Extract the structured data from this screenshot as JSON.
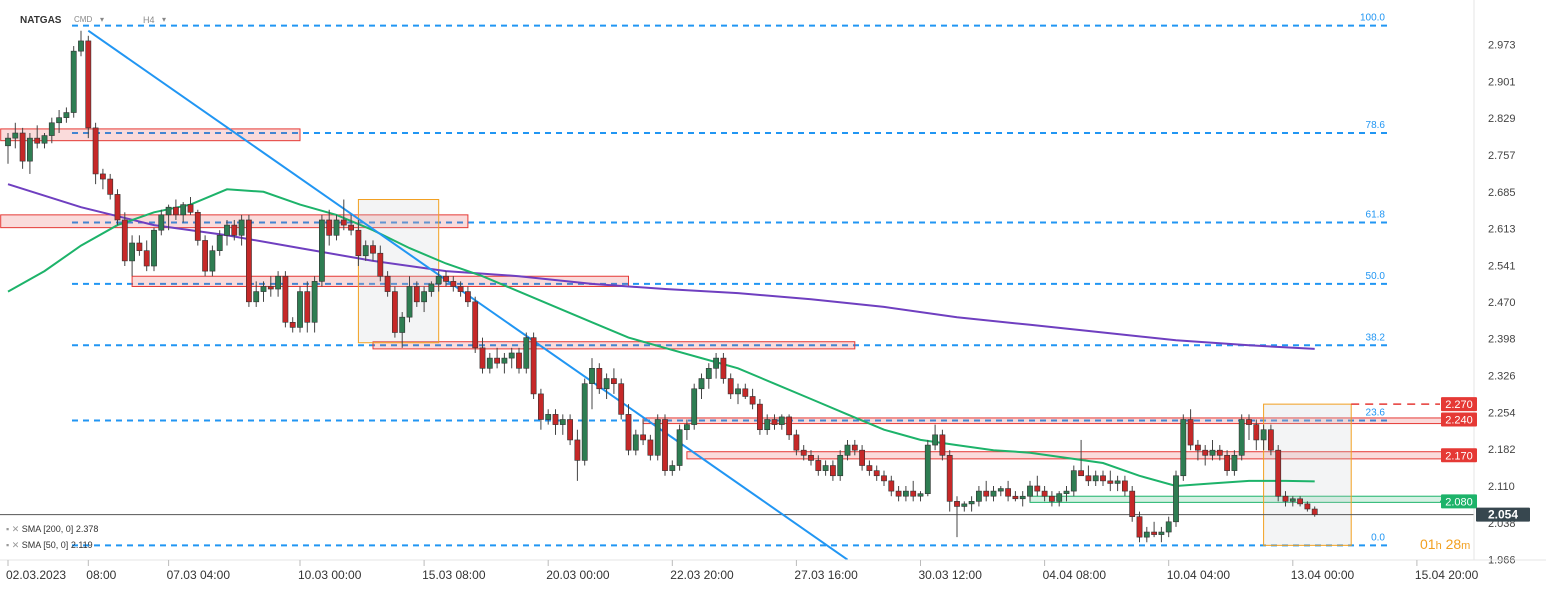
{
  "header": {
    "symbol": "NATGAS",
    "source": "CMD",
    "timeframe": "H4"
  },
  "indicators": [
    {
      "label": "SMA [200, 0]",
      "value": "2.378",
      "color": "#6f3fc0"
    },
    {
      "label": "SMA [50, 0]",
      "value": "2.119",
      "color": "#1db36a"
    }
  ],
  "countdown": {
    "hours": "01",
    "h": "h",
    "minutes": "28",
    "m": "m"
  },
  "chart_data": {
    "type": "candlestick",
    "title": "",
    "xlabel": "",
    "ylabel": "",
    "ylim": [
      1.936,
      3.06
    ],
    "grid": false,
    "y_ticks": [
      "2.973",
      "2.901",
      "2.829",
      "2.757",
      "2.685",
      "2.613",
      "2.541",
      "2.470",
      "2.398",
      "2.326",
      "2.254",
      "2.182",
      "2.110",
      "2.038",
      "1.966"
    ],
    "x_ticks": [
      {
        "label": "02.03.2023",
        "i": 0
      },
      {
        "label": "08:00",
        "i": 11
      },
      {
        "label": "07.03 04:00",
        "i": 22
      },
      {
        "label": "10.03 00:00",
        "i": 40
      },
      {
        "label": "15.03 08:00",
        "i": 57
      },
      {
        "label": "20.03 00:00",
        "i": 74
      },
      {
        "label": "22.03 20:00",
        "i": 91
      },
      {
        "label": "27.03 16:00",
        "i": 108
      },
      {
        "label": "30.03 12:00",
        "i": 125
      },
      {
        "label": "04.04 08:00",
        "i": 142
      },
      {
        "label": "10.04 04:00",
        "i": 159
      },
      {
        "label": "13.04 00:00",
        "i": 176
      },
      {
        "label": "15.04 20:00",
        "i": 193
      }
    ],
    "fibonacci": [
      {
        "level": "100.0",
        "price": 3.01
      },
      {
        "level": "78.6",
        "price": 2.8
      },
      {
        "level": "61.8",
        "price": 2.625
      },
      {
        "level": "50.0",
        "price": 2.505
      },
      {
        "level": "38.2",
        "price": 2.385
      },
      {
        "level": "23.6",
        "price": 2.238
      },
      {
        "level": "0.0",
        "price": 1.994
      }
    ],
    "price_labels": [
      {
        "text": "2.270",
        "price": 2.27,
        "color": "#e53935"
      },
      {
        "text": "2.240",
        "price": 2.24,
        "color": "#e53935"
      },
      {
        "text": "2.170",
        "price": 2.17,
        "color": "#e53935"
      },
      {
        "text": "2.080",
        "price": 2.08,
        "color": "#1db36a"
      },
      {
        "text": "2.054",
        "price": 2.054,
        "color": "#37474f"
      }
    ],
    "candles": [
      [
        2.775,
        2.8,
        2.74,
        2.79
      ],
      [
        2.79,
        2.82,
        2.77,
        2.8
      ],
      [
        2.8,
        2.81,
        2.73,
        2.745
      ],
      [
        2.745,
        2.8,
        2.72,
        2.79
      ],
      [
        2.79,
        2.815,
        2.77,
        2.78
      ],
      [
        2.78,
        2.8,
        2.77,
        2.795
      ],
      [
        2.795,
        2.83,
        2.78,
        2.82
      ],
      [
        2.82,
        2.845,
        2.8,
        2.83
      ],
      [
        2.83,
        2.85,
        2.82,
        2.84
      ],
      [
        2.84,
        2.97,
        2.83,
        2.96
      ],
      [
        2.96,
        3.0,
        2.95,
        2.98
      ],
      [
        2.98,
        2.99,
        2.79,
        2.81
      ],
      [
        2.81,
        2.82,
        2.7,
        2.72
      ],
      [
        2.72,
        2.73,
        2.69,
        2.71
      ],
      [
        2.71,
        2.72,
        2.67,
        2.68
      ],
      [
        2.68,
        2.69,
        2.62,
        2.63
      ],
      [
        2.63,
        2.645,
        2.54,
        2.55
      ],
      [
        2.55,
        2.6,
        2.52,
        2.585
      ],
      [
        2.585,
        2.6,
        2.56,
        2.57
      ],
      [
        2.57,
        2.59,
        2.53,
        2.54
      ],
      [
        2.54,
        2.615,
        2.53,
        2.61
      ],
      [
        2.61,
        2.65,
        2.6,
        2.64
      ],
      [
        2.64,
        2.66,
        2.61,
        2.655
      ],
      [
        2.655,
        2.67,
        2.63,
        2.64
      ],
      [
        2.64,
        2.665,
        2.625,
        2.66
      ],
      [
        2.66,
        2.675,
        2.64,
        2.645
      ],
      [
        2.645,
        2.65,
        2.58,
        2.59
      ],
      [
        2.59,
        2.6,
        2.52,
        2.53
      ],
      [
        2.53,
        2.58,
        2.52,
        2.57
      ],
      [
        2.57,
        2.61,
        2.56,
        2.6
      ],
      [
        2.6,
        2.63,
        2.58,
        2.62
      ],
      [
        2.62,
        2.63,
        2.59,
        2.6
      ],
      [
        2.6,
        2.64,
        2.58,
        2.63
      ],
      [
        2.63,
        2.64,
        2.46,
        2.47
      ],
      [
        2.47,
        2.51,
        2.46,
        2.49
      ],
      [
        2.49,
        2.51,
        2.47,
        2.5
      ],
      [
        2.5,
        2.52,
        2.48,
        2.495
      ],
      [
        2.495,
        2.53,
        2.48,
        2.52
      ],
      [
        2.52,
        2.53,
        2.42,
        2.43
      ],
      [
        2.43,
        2.44,
        2.41,
        2.42
      ],
      [
        2.42,
        2.5,
        2.41,
        2.49
      ],
      [
        2.49,
        2.51,
        2.41,
        2.43
      ],
      [
        2.43,
        2.52,
        2.41,
        2.51
      ],
      [
        2.51,
        2.64,
        2.5,
        2.63
      ],
      [
        2.63,
        2.65,
        2.58,
        2.6
      ],
      [
        2.6,
        2.64,
        2.59,
        2.63
      ],
      [
        2.63,
        2.67,
        2.61,
        2.62
      ],
      [
        2.62,
        2.64,
        2.6,
        2.61
      ],
      [
        2.61,
        2.63,
        2.54,
        2.56
      ],
      [
        2.56,
        2.59,
        2.55,
        2.58
      ],
      [
        2.58,
        2.59,
        2.55,
        2.565
      ],
      [
        2.565,
        2.58,
        2.51,
        2.52
      ],
      [
        2.52,
        2.53,
        2.48,
        2.49
      ],
      [
        2.49,
        2.5,
        2.4,
        2.41
      ],
      [
        2.41,
        2.45,
        2.38,
        2.44
      ],
      [
        2.44,
        2.52,
        2.43,
        2.5
      ],
      [
        2.5,
        2.51,
        2.46,
        2.47
      ],
      [
        2.47,
        2.5,
        2.45,
        2.49
      ],
      [
        2.49,
        2.51,
        2.48,
        2.505
      ],
      [
        2.505,
        2.53,
        2.49,
        2.52
      ],
      [
        2.52,
        2.53,
        2.5,
        2.51
      ],
      [
        2.51,
        2.52,
        2.49,
        2.5
      ],
      [
        2.5,
        2.51,
        2.48,
        2.49
      ],
      [
        2.49,
        2.5,
        2.46,
        2.47
      ],
      [
        2.47,
        2.48,
        2.37,
        2.38
      ],
      [
        2.38,
        2.4,
        2.33,
        2.34
      ],
      [
        2.34,
        2.37,
        2.33,
        2.36
      ],
      [
        2.36,
        2.38,
        2.34,
        2.35
      ],
      [
        2.35,
        2.37,
        2.33,
        2.36
      ],
      [
        2.36,
        2.38,
        2.34,
        2.37
      ],
      [
        2.37,
        2.38,
        2.33,
        2.34
      ],
      [
        2.34,
        2.41,
        2.33,
        2.4
      ],
      [
        2.4,
        2.41,
        2.28,
        2.29
      ],
      [
        2.29,
        2.3,
        2.22,
        2.24
      ],
      [
        2.24,
        2.26,
        2.23,
        2.25
      ],
      [
        2.25,
        2.26,
        2.21,
        2.23
      ],
      [
        2.23,
        2.25,
        2.21,
        2.24
      ],
      [
        2.24,
        2.25,
        2.19,
        2.2
      ],
      [
        2.2,
        2.22,
        2.12,
        2.16
      ],
      [
        2.16,
        2.32,
        2.15,
        2.31
      ],
      [
        2.31,
        2.36,
        2.26,
        2.34
      ],
      [
        2.34,
        2.35,
        2.29,
        2.3
      ],
      [
        2.3,
        2.33,
        2.28,
        2.32
      ],
      [
        2.32,
        2.34,
        2.29,
        2.31
      ],
      [
        2.31,
        2.32,
        2.24,
        2.25
      ],
      [
        2.25,
        2.27,
        2.17,
        2.18
      ],
      [
        2.18,
        2.22,
        2.17,
        2.21
      ],
      [
        2.21,
        2.24,
        2.19,
        2.2
      ],
      [
        2.2,
        2.21,
        2.16,
        2.17
      ],
      [
        2.17,
        2.25,
        2.16,
        2.24
      ],
      [
        2.24,
        2.25,
        2.13,
        2.14
      ],
      [
        2.14,
        2.16,
        2.13,
        2.15
      ],
      [
        2.15,
        2.23,
        2.14,
        2.22
      ],
      [
        2.22,
        2.24,
        2.2,
        2.23
      ],
      [
        2.23,
        2.31,
        2.22,
        2.3
      ],
      [
        2.3,
        2.33,
        2.28,
        2.32
      ],
      [
        2.32,
        2.35,
        2.3,
        2.34
      ],
      [
        2.34,
        2.37,
        2.32,
        2.36
      ],
      [
        2.36,
        2.37,
        2.31,
        2.32
      ],
      [
        2.32,
        2.33,
        2.28,
        2.29
      ],
      [
        2.29,
        2.31,
        2.27,
        2.3
      ],
      [
        2.3,
        2.31,
        2.28,
        2.285
      ],
      [
        2.285,
        2.3,
        2.26,
        2.27
      ],
      [
        2.27,
        2.28,
        2.21,
        2.22
      ],
      [
        2.22,
        2.25,
        2.21,
        2.24
      ],
      [
        2.24,
        2.25,
        2.22,
        2.23
      ],
      [
        2.23,
        2.25,
        2.22,
        2.245
      ],
      [
        2.245,
        2.25,
        2.2,
        2.21
      ],
      [
        2.21,
        2.22,
        2.17,
        2.18
      ],
      [
        2.18,
        2.19,
        2.16,
        2.17
      ],
      [
        2.17,
        2.18,
        2.15,
        2.16
      ],
      [
        2.16,
        2.17,
        2.13,
        2.14
      ],
      [
        2.14,
        2.16,
        2.13,
        2.15
      ],
      [
        2.15,
        2.16,
        2.12,
        2.13
      ],
      [
        2.13,
        2.18,
        2.12,
        2.17
      ],
      [
        2.17,
        2.2,
        2.16,
        2.19
      ],
      [
        2.19,
        2.2,
        2.17,
        2.18
      ],
      [
        2.18,
        2.19,
        2.14,
        2.15
      ],
      [
        2.15,
        2.16,
        2.13,
        2.14
      ],
      [
        2.14,
        2.15,
        2.12,
        2.13
      ],
      [
        2.13,
        2.14,
        2.11,
        2.12
      ],
      [
        2.12,
        2.13,
        2.09,
        2.1
      ],
      [
        2.1,
        2.11,
        2.08,
        2.09
      ],
      [
        2.09,
        2.11,
        2.08,
        2.1
      ],
      [
        2.1,
        2.12,
        2.08,
        2.09
      ],
      [
        2.09,
        2.1,
        2.08,
        2.095
      ],
      [
        2.095,
        2.2,
        2.09,
        2.19
      ],
      [
        2.19,
        2.23,
        2.18,
        2.21
      ],
      [
        2.21,
        2.22,
        2.16,
        2.17
      ],
      [
        2.17,
        2.18,
        2.06,
        2.08
      ],
      [
        2.08,
        2.09,
        2.01,
        2.07
      ],
      [
        2.07,
        2.08,
        2.06,
        2.075
      ],
      [
        2.075,
        2.09,
        2.06,
        2.08
      ],
      [
        2.08,
        2.11,
        2.07,
        2.1
      ],
      [
        2.1,
        2.12,
        2.08,
        2.09
      ],
      [
        2.09,
        2.11,
        2.08,
        2.1
      ],
      [
        2.1,
        2.11,
        2.09,
        2.105
      ],
      [
        2.105,
        2.12,
        2.08,
        2.09
      ],
      [
        2.09,
        2.1,
        2.08,
        2.085
      ],
      [
        2.085,
        2.1,
        2.07,
        2.09
      ],
      [
        2.09,
        2.12,
        2.08,
        2.11
      ],
      [
        2.11,
        2.13,
        2.09,
        2.1
      ],
      [
        2.1,
        2.11,
        2.08,
        2.09
      ],
      [
        2.09,
        2.1,
        2.07,
        2.08
      ],
      [
        2.08,
        2.1,
        2.07,
        2.095
      ],
      [
        2.095,
        2.11,
        2.08,
        2.1
      ],
      [
        2.1,
        2.15,
        2.09,
        2.14
      ],
      [
        2.14,
        2.2,
        2.13,
        2.13
      ],
      [
        2.13,
        2.15,
        2.11,
        2.12
      ],
      [
        2.12,
        2.14,
        2.11,
        2.13
      ],
      [
        2.13,
        2.14,
        2.11,
        2.12
      ],
      [
        2.12,
        2.14,
        2.1,
        2.115
      ],
      [
        2.115,
        2.13,
        2.1,
        2.12
      ],
      [
        2.12,
        2.13,
        2.09,
        2.1
      ],
      [
        2.1,
        2.11,
        2.04,
        2.05
      ],
      [
        2.05,
        2.06,
        2.0,
        2.01
      ],
      [
        2.01,
        2.03,
        2.0,
        2.02
      ],
      [
        2.02,
        2.04,
        2.01,
        2.015
      ],
      [
        2.015,
        2.03,
        2.0,
        2.02
      ],
      [
        2.02,
        2.05,
        2.01,
        2.04
      ],
      [
        2.04,
        2.14,
        2.03,
        2.13
      ],
      [
        2.13,
        2.25,
        2.12,
        2.24
      ],
      [
        2.24,
        2.26,
        2.18,
        2.19
      ],
      [
        2.19,
        2.2,
        2.16,
        2.18
      ],
      [
        2.18,
        2.19,
        2.15,
        2.17
      ],
      [
        2.17,
        2.2,
        2.16,
        2.18
      ],
      [
        2.18,
        2.19,
        2.16,
        2.17
      ],
      [
        2.17,
        2.18,
        2.13,
        2.14
      ],
      [
        2.14,
        2.18,
        2.13,
        2.17
      ],
      [
        2.17,
        2.25,
        2.16,
        2.24
      ],
      [
        2.24,
        2.25,
        2.2,
        2.23
      ],
      [
        2.23,
        2.24,
        2.18,
        2.2
      ],
      [
        2.2,
        2.23,
        2.18,
        2.22
      ],
      [
        2.22,
        2.23,
        2.17,
        2.18
      ],
      [
        2.18,
        2.19,
        2.08,
        2.09
      ],
      [
        2.09,
        2.1,
        2.07,
        2.08
      ],
      [
        2.08,
        2.09,
        2.07,
        2.085
      ],
      [
        2.085,
        2.09,
        2.07,
        2.075
      ],
      [
        2.075,
        2.08,
        2.06,
        2.065
      ],
      [
        2.065,
        2.07,
        2.05,
        2.054
      ]
    ],
    "sma200": [
      [
        0,
        2.7
      ],
      [
        10,
        2.655
      ],
      [
        20,
        2.62
      ],
      [
        30,
        2.6
      ],
      [
        40,
        2.575
      ],
      [
        50,
        2.55
      ],
      [
        60,
        2.53
      ],
      [
        70,
        2.52
      ],
      [
        80,
        2.505
      ],
      [
        90,
        2.495
      ],
      [
        100,
        2.487
      ],
      [
        110,
        2.475
      ],
      [
        120,
        2.46
      ],
      [
        130,
        2.44
      ],
      [
        140,
        2.425
      ],
      [
        150,
        2.41
      ],
      [
        160,
        2.395
      ],
      [
        170,
        2.385
      ],
      [
        179,
        2.378
      ]
    ],
    "sma50": [
      [
        0,
        2.49
      ],
      [
        5,
        2.53
      ],
      [
        10,
        2.58
      ],
      [
        15,
        2.62
      ],
      [
        20,
        2.645
      ],
      [
        25,
        2.66
      ],
      [
        30,
        2.69
      ],
      [
        35,
        2.685
      ],
      [
        40,
        2.66
      ],
      [
        45,
        2.64
      ],
      [
        50,
        2.61
      ],
      [
        55,
        2.575
      ],
      [
        60,
        2.545
      ],
      [
        65,
        2.52
      ],
      [
        70,
        2.49
      ],
      [
        75,
        2.46
      ],
      [
        80,
        2.43
      ],
      [
        85,
        2.4
      ],
      [
        90,
        2.38
      ],
      [
        95,
        2.36
      ],
      [
        100,
        2.34
      ],
      [
        105,
        2.31
      ],
      [
        110,
        2.28
      ],
      [
        115,
        2.25
      ],
      [
        120,
        2.22
      ],
      [
        125,
        2.2
      ],
      [
        130,
        2.19
      ],
      [
        135,
        2.18
      ],
      [
        140,
        2.175
      ],
      [
        145,
        2.165
      ],
      [
        150,
        2.155
      ],
      [
        155,
        2.13
      ],
      [
        160,
        2.11
      ],
      [
        165,
        2.115
      ],
      [
        170,
        2.12
      ],
      [
        175,
        2.12
      ],
      [
        179,
        2.119
      ]
    ],
    "trendline": [
      [
        11,
        3.0
      ],
      [
        115,
        1.966
      ]
    ],
    "zones": [
      {
        "i0": -1,
        "i1": 40,
        "p0": 2.785,
        "p1": 2.808,
        "type": "resistance"
      },
      {
        "i0": -1,
        "i1": 63,
        "p0": 2.615,
        "p1": 2.64,
        "type": "resistance"
      },
      {
        "i0": 17,
        "i1": 85,
        "p0": 2.5,
        "p1": 2.52,
        "type": "resistance"
      },
      {
        "i0": 50,
        "i1": 116,
        "p0": 2.378,
        "p1": 2.392,
        "type": "resistance"
      },
      {
        "i0": 87,
        "i1": 198,
        "p0": 2.232,
        "p1": 2.243,
        "type": "resistance"
      },
      {
        "i0": 93,
        "i1": 198,
        "p0": 2.163,
        "p1": 2.177,
        "type": "resistance"
      },
      {
        "i0": 140,
        "i1": 199,
        "p0": 2.078,
        "p1": 2.09,
        "type": "support"
      }
    ],
    "boxes": [
      {
        "i0": 48,
        "i1": 59,
        "p0": 2.39,
        "p1": 2.67
      },
      {
        "i0": 172,
        "i1": 184,
        "p0": 1.994,
        "p1": 2.27
      }
    ],
    "dashed_levels": [
      {
        "price": 2.27,
        "color": "#e53935",
        "i0": 184
      },
      {
        "price": 2.24,
        "color": "#e53935",
        "i0": 198
      },
      {
        "price": 2.17,
        "color": "#e53935",
        "i0": 198
      },
      {
        "price": 2.08,
        "color": "#1db36a",
        "i0": 199
      }
    ]
  }
}
